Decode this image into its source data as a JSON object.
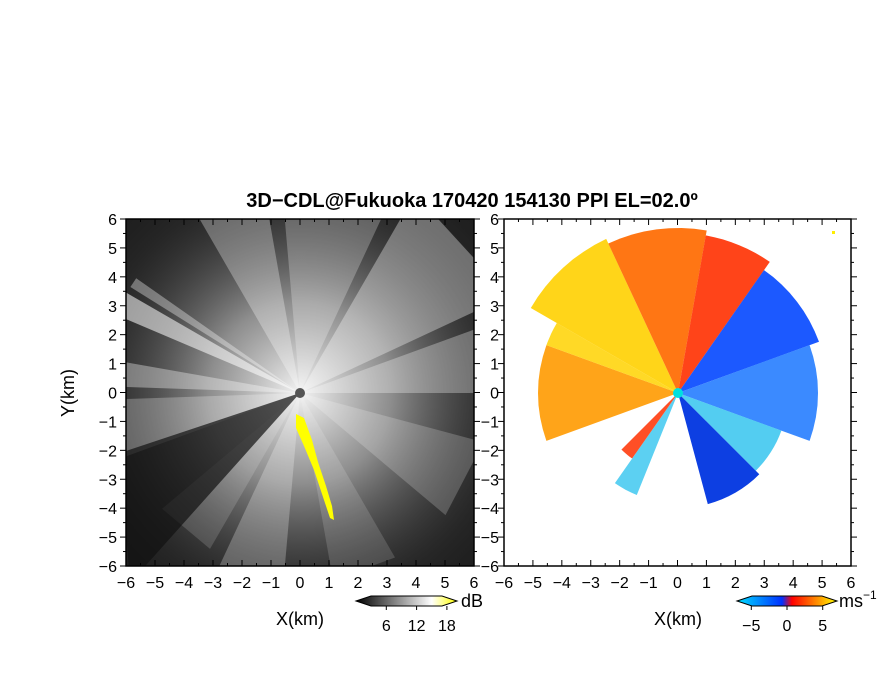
{
  "title": "3D−CDL@Fukuoka 170420 154130 PPI EL=02.0º",
  "chart_data": [
    {
      "type": "heatmap",
      "field": "signal intensity",
      "xlabel": "X(km)",
      "ylabel": "Y(km)",
      "xlim": [
        -6,
        6
      ],
      "ylim": [
        -6,
        6
      ],
      "xticks": [
        "−6",
        "−5",
        "−4",
        "−3",
        "−2",
        "−1",
        "0",
        "1",
        "2",
        "3",
        "4",
        "5",
        "6"
      ],
      "yticks": [
        "6",
        "5",
        "4",
        "3",
        "2",
        "1",
        "0",
        "−1",
        "−2",
        "−3",
        "−4",
        "−5",
        "−6"
      ],
      "colorbar": {
        "unit": "dB",
        "ticks": [
          "6",
          "12",
          "18"
        ],
        "tick_values": [
          6,
          12,
          18
        ],
        "range": [
          0,
          20
        ],
        "colors": [
          "#000000",
          "#ffffff",
          "#ffff00"
        ]
      },
      "radar_center": [
        0,
        0
      ]
    },
    {
      "type": "heatmap",
      "field": "radial velocity",
      "xlabel": "X(km)",
      "ylabel": "",
      "xlim": [
        -6,
        6
      ],
      "ylim": [
        -6,
        6
      ],
      "xticks": [
        "−6",
        "−5",
        "−4",
        "−3",
        "−2",
        "−1",
        "0",
        "1",
        "2",
        "3",
        "4",
        "5",
        "6"
      ],
      "yticks": [
        "6",
        "5",
        "4",
        "3",
        "2",
        "1",
        "0",
        "−1",
        "−2",
        "−3",
        "−4",
        "−5",
        "−6"
      ],
      "colorbar": {
        "unit": "ms",
        "unit_superscript": "−1",
        "ticks": [
          "−5",
          "0",
          "5"
        ],
        "tick_values": [
          -5,
          0,
          5
        ],
        "range": [
          -7,
          7
        ],
        "colors": [
          "#00e0ff",
          "#0030ff",
          "#ff0000",
          "#ffff00"
        ]
      },
      "radar_center": [
        0,
        0
      ]
    }
  ]
}
